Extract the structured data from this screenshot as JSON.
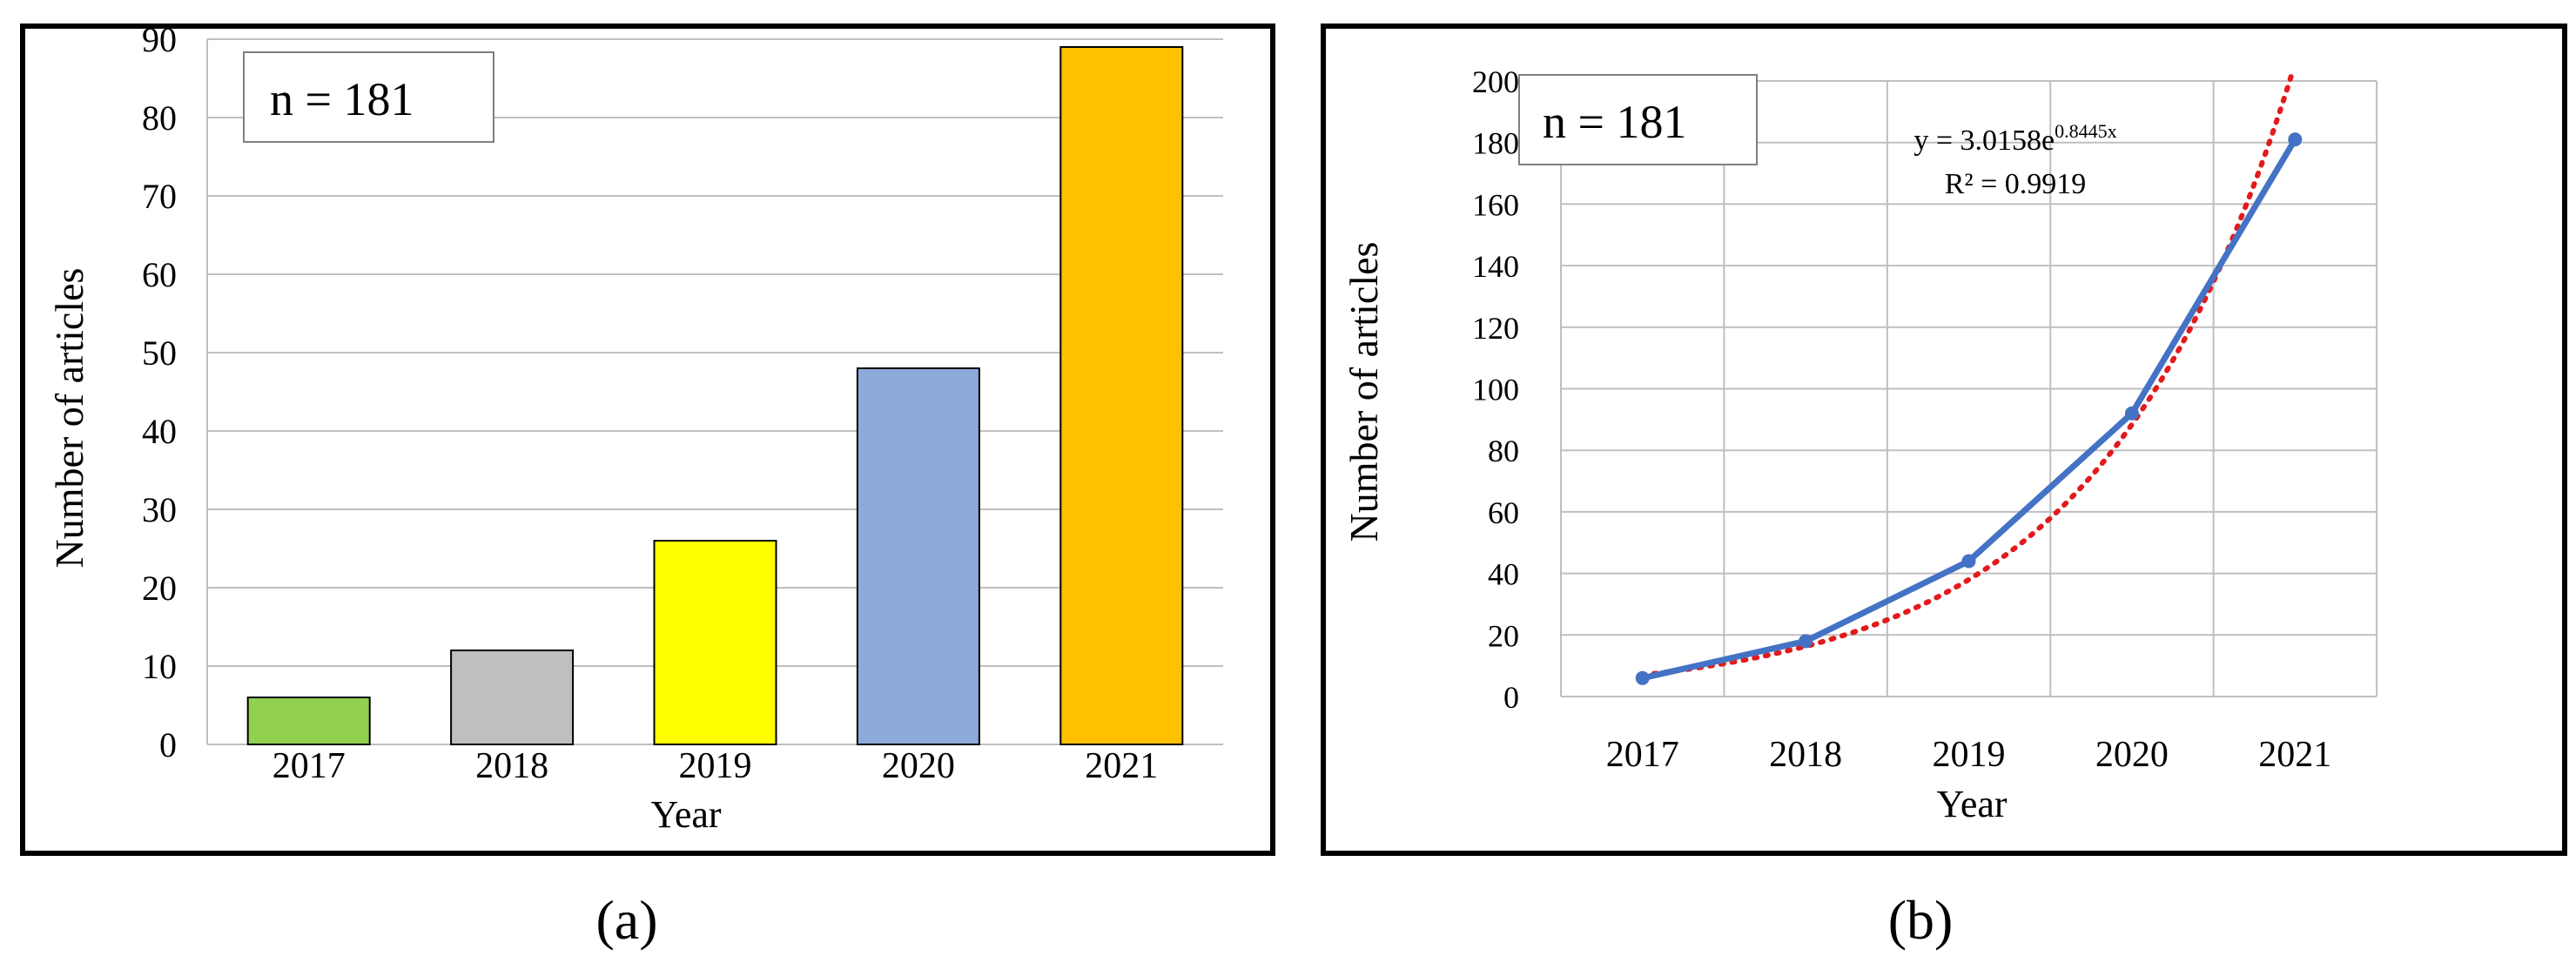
{
  "chart_data": [
    {
      "panel": "(a)",
      "type": "bar",
      "annotation": "n = 181",
      "xlabel": "Year",
      "ylabel": "Number of articles",
      "categories": [
        "2017",
        "2018",
        "2019",
        "2020",
        "2021"
      ],
      "values": [
        6,
        12,
        26,
        48,
        89
      ],
      "bar_colors": [
        "#92d050",
        "#bfbfbf",
        "#ffff00",
        "#8eaadb",
        "#ffc000"
      ],
      "ylim": [
        0,
        90
      ],
      "yticks": [
        "0",
        "10",
        "20",
        "30",
        "40",
        "50",
        "60",
        "70",
        "80",
        "90"
      ],
      "grid": "horizontal",
      "legend": "none"
    },
    {
      "panel": "(b)",
      "type": "line",
      "annotation": "n = 181",
      "xlabel": "Year",
      "ylabel": "Number of articles",
      "categories": [
        "2017",
        "2018",
        "2019",
        "2020",
        "2021"
      ],
      "series": [
        {
          "values": [
            6,
            18,
            44,
            92,
            181
          ],
          "color": "#4472c4",
          "style": "solid, markers"
        }
      ],
      "trendline": {
        "kind": "exponential",
        "equation_prefix": "y = 3.0158e",
        "equation_exponent": "0.8445x",
        "r_squared": "R² = 0.9919",
        "a": 3.0158,
        "b": 0.8445,
        "color": "#e31a1c",
        "style": "dotted"
      },
      "ylim": [
        0,
        200
      ],
      "yticks": [
        "0",
        "20",
        "40",
        "60",
        "80",
        "100",
        "120",
        "140",
        "160",
        "180",
        "200"
      ],
      "grid": "both",
      "legend": "none"
    }
  ],
  "captions": [
    "(a)",
    "(b)"
  ],
  "colors": {
    "frame": "#000000",
    "grid": "#bfbfbf",
    "axis_text": "#000000"
  }
}
